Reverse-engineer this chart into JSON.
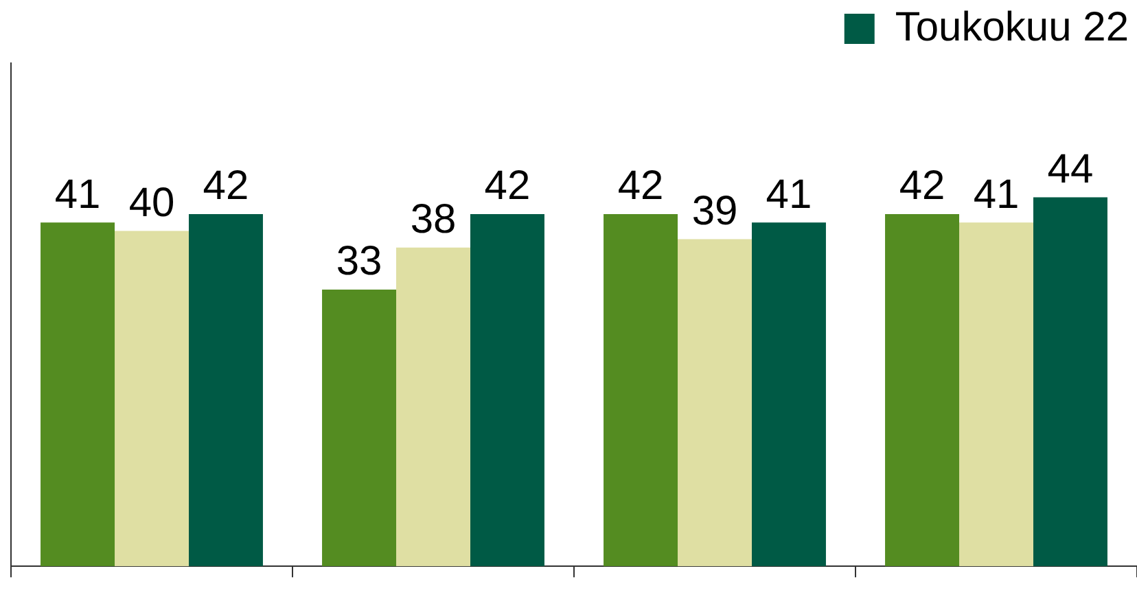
{
  "chart_data": {
    "type": "bar",
    "categories": [
      null,
      null,
      null,
      null
    ],
    "series": [
      {
        "color": "#548c21",
        "values": [
          41,
          33,
          42,
          42
        ]
      },
      {
        "color": "#dfdfa3",
        "values": [
          40,
          38,
          39,
          41
        ]
      },
      {
        "name": "Toukokuu 22",
        "color": "#005a45",
        "values": [
          42,
          42,
          41,
          44
        ]
      }
    ],
    "data_labels": true,
    "legend": "top right",
    "grid": false
  }
}
